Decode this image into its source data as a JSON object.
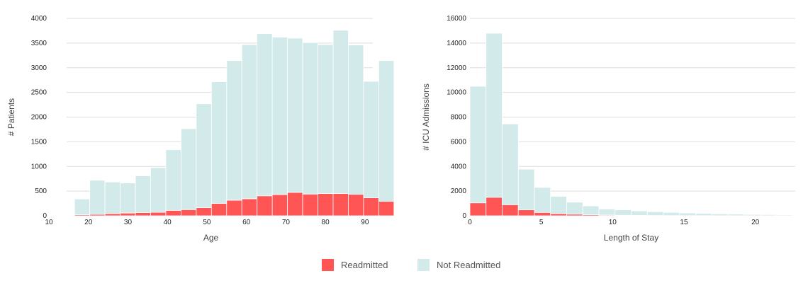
{
  "colors": {
    "readmitted": "#ff5555",
    "not_readmitted": "#d3eaea",
    "grid": "#dedede"
  },
  "legend": [
    {
      "label": "Readmitted",
      "color": "#ff5555"
    },
    {
      "label": "Not Readmitted",
      "color": "#d3eaea"
    }
  ],
  "chart_data": [
    {
      "type": "bar",
      "stacked": true,
      "title": "",
      "xlabel": "Age",
      "ylabel": "# Patients",
      "xlim": [
        10,
        92
      ],
      "ylim": [
        0,
        4000
      ],
      "xticks": [
        10,
        20,
        30,
        40,
        50,
        60,
        70,
        80,
        90
      ],
      "yticks": [
        0,
        500,
        1000,
        1500,
        2000,
        2500,
        3000,
        3500,
        4000
      ],
      "grid": true,
      "bin_start": 16.5,
      "bin_width": 3.85,
      "series": [
        {
          "name": "Readmitted",
          "values": [
            20,
            30,
            45,
            55,
            65,
            70,
            110,
            125,
            165,
            250,
            315,
            345,
            405,
            430,
            475,
            440,
            450,
            450,
            435,
            365,
            295
          ]
        },
        {
          "name": "Not Readmitted",
          "values": [
            320,
            690,
            640,
            610,
            745,
            905,
            1230,
            1640,
            2105,
            2465,
            2830,
            3125,
            3285,
            3190,
            3125,
            3070,
            3020,
            3310,
            3025,
            2360,
            2850
          ]
        }
      ]
    },
    {
      "type": "bar",
      "stacked": true,
      "title": "",
      "xlabel": "Length of Stay",
      "ylabel": "# ICU Admissions",
      "xlim": [
        0,
        22.8
      ],
      "ylim": [
        0,
        16000
      ],
      "xticks": [
        0,
        5,
        10,
        15,
        20
      ],
      "yticks": [
        0,
        2000,
        4000,
        6000,
        8000,
        10000,
        12000,
        14000,
        16000
      ],
      "grid": true,
      "bin_start": 0,
      "bin_width": 1.13,
      "series": [
        {
          "name": "Readmitted",
          "values": [
            1050,
            1500,
            900,
            480,
            270,
            180,
            130,
            80,
            60,
            40,
            30,
            20,
            15,
            10,
            10,
            5,
            5,
            5,
            5,
            5
          ]
        },
        {
          "name": "Not Readmitted",
          "values": [
            9450,
            13300,
            6550,
            3300,
            2030,
            1400,
            970,
            720,
            490,
            440,
            370,
            310,
            260,
            220,
            180,
            150,
            130,
            100,
            90,
            70
          ]
        }
      ]
    }
  ]
}
